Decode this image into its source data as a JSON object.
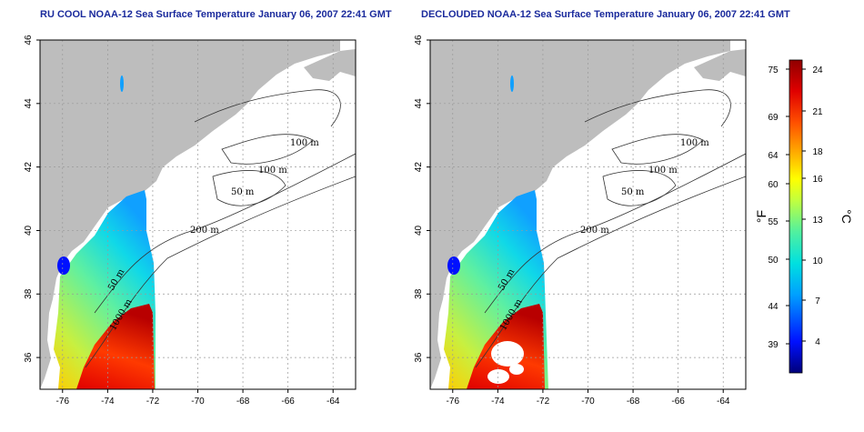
{
  "panels": [
    {
      "id": "left",
      "title": "RU COOL NOAA-12 Sea Surface Temperature January 06, 2007 22:41 GMT",
      "clouds_removed": false
    },
    {
      "id": "right",
      "title": "DECLOUDED NOAA-12 Sea Surface Temperature January 06, 2007 22:41 GMT",
      "clouds_removed": true
    }
  ],
  "map": {
    "lon_ticks": [
      "-76",
      "-74",
      "-72",
      "-70",
      "-68",
      "-66",
      "-64"
    ],
    "lat_ticks": [
      "46",
      "44",
      "42",
      "40",
      "38",
      "36"
    ],
    "contour_labels": [
      "100 m",
      "100 m",
      "50 m",
      "200 m",
      "50 m",
      "1000 m"
    ],
    "land_color": "#bdbdbd",
    "gridline": "dotted"
  },
  "colorbar": {
    "fahrenheit_ticks": [
      "75",
      "69",
      "64",
      "60",
      "55",
      "50",
      "44",
      "39"
    ],
    "celsius_ticks": [
      "24",
      "21",
      "18",
      "16",
      "13",
      "10",
      "7",
      "4"
    ],
    "fahrenheit_unit": "°F",
    "celsius_unit": "°C",
    "colors": [
      "#00007a",
      "#0010ff",
      "#00a0ff",
      "#00e0e0",
      "#50f0a0",
      "#c0ff40",
      "#ffff00",
      "#ffb000",
      "#ff5000",
      "#e00000",
      "#900000"
    ]
  }
}
